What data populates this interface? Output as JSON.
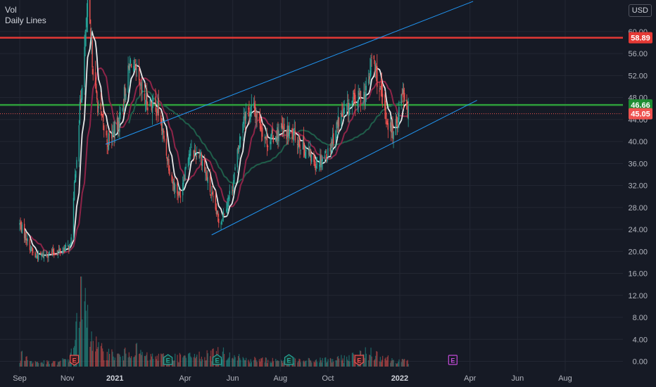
{
  "legend": {
    "line1": "Vol",
    "line2": "Daily Lines"
  },
  "currency": "USD",
  "colors": {
    "background": "#161a25",
    "grid": "#232733",
    "up": "#26a69a",
    "down": "#ef5350",
    "resistance": "#e53935",
    "support": "#2e9e3b",
    "channel": "#2196f3",
    "ma_fast": "#e8e8e8",
    "ma_mid": "#8e2448",
    "ma_slow": "#1f5e4a",
    "earnings_hist": "#ef5350",
    "earnings_up": "#26a69a",
    "earnings_future": "#c24ad8"
  },
  "chart_data": {
    "type": "candlestick",
    "title": "",
    "ylabel": "",
    "ylim": [
      0,
      64
    ],
    "y_ticks": [
      "0.00",
      "4.00",
      "8.00",
      "12.00",
      "16.00",
      "20.00",
      "24.00",
      "28.00",
      "32.00",
      "36.00",
      "40.00",
      "44.00",
      "48.00",
      "52.00",
      "56.00",
      "60.00"
    ],
    "x_ticks": [
      "Sep",
      "Nov",
      "2021",
      "Apr",
      "Jun",
      "Aug",
      "Oct",
      "2022",
      "Apr",
      "Jun",
      "Aug"
    ],
    "price_labels": [
      {
        "value": 58.89,
        "text": "58.89",
        "color": "#e53935"
      },
      {
        "value": 46.66,
        "text": "46.66",
        "color": "#1e8c32"
      },
      {
        "value": 45.05,
        "text": "45.05",
        "color": "#ef5350"
      }
    ],
    "horizontal_lines": [
      {
        "name": "resistance",
        "value": 58.89
      },
      {
        "name": "support",
        "value": 46.66
      }
    ],
    "channel_upper": [
      {
        "x": "2020-12-20",
        "y": 39.5
      },
      {
        "x": "2022-04-05",
        "y": 65.5
      }
    ],
    "channel_lower": [
      {
        "x": "2021-05-05",
        "y": 23.0
      },
      {
        "x": "2022-04-10",
        "y": 47.5
      }
    ],
    "price_anchors": [
      [
        "2020-09-01",
        25,
        14
      ],
      [
        "2020-09-20",
        19
      ],
      [
        "2020-10-20",
        20
      ],
      [
        "2020-11-05",
        21,
        12
      ],
      [
        "2020-11-15",
        42,
        14
      ],
      [
        "2020-11-27",
        64
      ],
      [
        "2020-12-08",
        48
      ],
      [
        "2020-12-22",
        40
      ],
      [
        "2021-01-05",
        43
      ],
      [
        "2021-01-22",
        55
      ],
      [
        "2021-02-05",
        48
      ],
      [
        "2021-02-25",
        46
      ],
      [
        "2021-03-15",
        33
      ],
      [
        "2021-03-25",
        30
      ],
      [
        "2021-04-05",
        38
      ],
      [
        "2021-04-20",
        38
      ],
      [
        "2021-05-05",
        30
      ],
      [
        "2021-05-15",
        25
      ],
      [
        "2021-06-01",
        32
      ],
      [
        "2021-06-15",
        45
      ],
      [
        "2021-06-28",
        46
      ],
      [
        "2021-07-15",
        40
      ],
      [
        "2021-08-01",
        42
      ],
      [
        "2021-08-20",
        41
      ],
      [
        "2021-09-15",
        36
      ],
      [
        "2021-10-01",
        38
      ],
      [
        "2021-10-15",
        44
      ],
      [
        "2021-11-01",
        47
      ],
      [
        "2021-11-20",
        49
      ],
      [
        "2021-11-27",
        56
      ],
      [
        "2021-12-05",
        50
      ],
      [
        "2021-12-15",
        44
      ],
      [
        "2021-12-25",
        41
      ],
      [
        "2022-01-05",
        50
      ],
      [
        "2022-01-12",
        45
      ]
    ],
    "vol_anchors": [
      [
        "2020-09-01",
        1.0
      ],
      [
        "2020-09-04",
        3.0
      ],
      [
        "2020-09-15",
        1.0
      ],
      [
        "2020-10-20",
        0.8
      ],
      [
        "2020-11-05",
        2.0
      ],
      [
        "2020-11-12",
        8.0
      ],
      [
        "2020-11-17",
        15.5
      ],
      [
        "2020-11-28",
        9.0
      ],
      [
        "2020-12-10",
        3.5
      ],
      [
        "2021-01-10",
        2.0
      ],
      [
        "2021-01-22",
        4.0
      ],
      [
        "2021-02-10",
        2.0
      ],
      [
        "2021-04-01",
        2.0
      ],
      [
        "2021-06-01",
        3.0
      ],
      [
        "2021-06-15",
        1.5
      ],
      [
        "2021-09-01",
        1.2
      ],
      [
        "2021-10-15",
        1.5
      ],
      [
        "2021-11-27",
        3.0
      ],
      [
        "2021-12-20",
        1.5
      ],
      [
        "2022-01-12",
        1.0
      ]
    ],
    "earnings_markers": [
      {
        "date": "2020-11-10",
        "label": "E",
        "kind": "past_down"
      },
      {
        "date": "2021-03-10",
        "label": "E",
        "kind": "past_up"
      },
      {
        "date": "2021-05-12",
        "label": "E",
        "kind": "past_up"
      },
      {
        "date": "2021-08-12",
        "label": "E",
        "kind": "past_up"
      },
      {
        "date": "2021-11-10",
        "label": "E",
        "kind": "past_down"
      },
      {
        "date": "2022-03-10",
        "label": "E",
        "kind": "future"
      }
    ]
  }
}
